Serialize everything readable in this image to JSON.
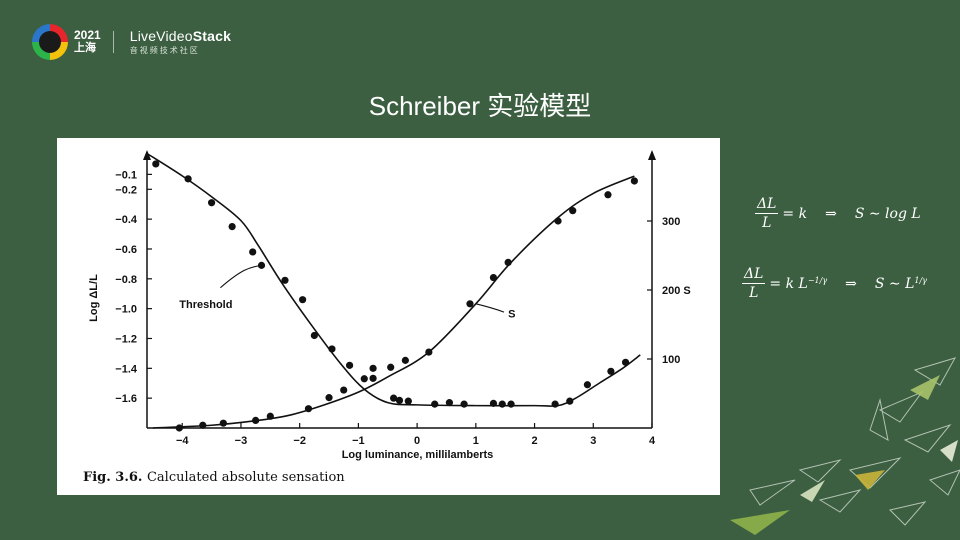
{
  "header": {
    "conf_year": "2021",
    "conf_city": "上海",
    "brand_pre": "LiveVideo",
    "brand_post": "Stack",
    "brand_sub": "音视频技术社区"
  },
  "slide_title": "Schreiber 实验模型",
  "formulas": [
    {
      "num": "ΔL",
      "den": "L",
      "rhs": "= k",
      "implies": "⇒",
      "result": "S ∼ log L"
    },
    {
      "num": "ΔL",
      "den": "L",
      "rhs": "= k L",
      "rhs_sup": "−1/γ",
      "implies": "⇒",
      "result": "S ∼ L",
      "result_sup": "1/γ"
    }
  ],
  "colors": {
    "background": "#3b5f40",
    "figure_bg": "#ffffff",
    "ink": "#111111"
  },
  "chart_data": {
    "type": "line",
    "xlabel": "Log luminance, millilamberts",
    "ylabel_left": "Log ΔL/L",
    "ylabel_right": "S",
    "caption_bold": "Fig. 3.6.",
    "caption_text": "Calculated absolute sensation",
    "x_ticks": [
      -4,
      -3,
      -2,
      -1,
      0,
      1,
      2,
      3,
      4
    ],
    "xlim": [
      -4.6,
      4
    ],
    "y_left_ticks": [
      -0.1,
      -0.2,
      -0.4,
      -0.6,
      -0.8,
      -1.0,
      -1.2,
      -1.4,
      -1.6
    ],
    "ylim_left": [
      -1.8,
      0.05
    ],
    "y_right_ticks": [
      {
        "value": 300,
        "label": "300"
      },
      {
        "value": 200,
        "label": "200 S"
      },
      {
        "value": 100,
        "label": "100"
      }
    ],
    "ylim_right": [
      0,
      400
    ],
    "series": [
      {
        "name": "Threshold",
        "axis": "left",
        "curve": [
          [
            -4.6,
            0.04
          ],
          [
            -4.0,
            -0.11
          ],
          [
            -3.5,
            -0.25
          ],
          [
            -3.0,
            -0.41
          ],
          [
            -2.7,
            -0.58
          ],
          [
            -2.3,
            -0.83
          ],
          [
            -1.8,
            -1.11
          ],
          [
            -1.3,
            -1.37
          ],
          [
            -0.9,
            -1.54
          ],
          [
            -0.5,
            -1.63
          ],
          [
            0,
            -1.645
          ],
          [
            1,
            -1.65
          ],
          [
            2,
            -1.65
          ],
          [
            2.4,
            -1.65
          ],
          [
            2.7,
            -1.6
          ],
          [
            3.1,
            -1.5
          ],
          [
            3.5,
            -1.4
          ],
          [
            3.8,
            -1.31
          ]
        ],
        "points": [
          [
            -4.45,
            -0.03
          ],
          [
            -3.9,
            -0.13
          ],
          [
            -3.5,
            -0.29
          ],
          [
            -3.15,
            -0.45
          ],
          [
            -2.8,
            -0.62
          ],
          [
            -2.65,
            -0.71
          ],
          [
            -2.25,
            -0.81
          ],
          [
            -1.95,
            -0.94
          ],
          [
            -1.75,
            -1.18
          ],
          [
            -1.45,
            -1.27
          ],
          [
            -1.15,
            -1.38
          ],
          [
            -0.9,
            -1.47
          ],
          [
            -0.75,
            -1.4
          ],
          [
            -0.4,
            -1.6
          ],
          [
            -0.3,
            -1.615
          ],
          [
            -0.15,
            -1.62
          ],
          [
            0.3,
            -1.64
          ],
          [
            0.55,
            -1.63
          ],
          [
            0.8,
            -1.64
          ],
          [
            1.3,
            -1.635
          ],
          [
            1.45,
            -1.64
          ],
          [
            1.6,
            -1.64
          ],
          [
            2.35,
            -1.64
          ],
          [
            2.6,
            -1.62
          ],
          [
            2.9,
            -1.51
          ],
          [
            3.3,
            -1.42
          ],
          [
            3.55,
            -1.36
          ]
        ]
      },
      {
        "name": "S",
        "axis": "right",
        "curve": [
          [
            -4.5,
            0
          ],
          [
            -3.5,
            4
          ],
          [
            -2.8,
            10
          ],
          [
            -2.2,
            18
          ],
          [
            -1.6,
            33
          ],
          [
            -1.0,
            52
          ],
          [
            -0.5,
            74
          ],
          [
            0.2,
            110
          ],
          [
            1.0,
            180
          ],
          [
            1.6,
            240
          ],
          [
            2.4,
            305
          ],
          [
            3.0,
            340
          ],
          [
            3.7,
            365
          ]
        ],
        "points": [
          [
            -4.05,
            0
          ],
          [
            -3.65,
            4
          ],
          [
            -3.3,
            7
          ],
          [
            -2.75,
            11
          ],
          [
            -2.5,
            17
          ],
          [
            -1.85,
            28
          ],
          [
            -1.5,
            44
          ],
          [
            -1.25,
            55
          ],
          [
            -0.75,
            72
          ],
          [
            -0.45,
            88
          ],
          [
            -0.2,
            98
          ],
          [
            0.2,
            110
          ],
          [
            0.9,
            180
          ],
          [
            1.3,
            218
          ],
          [
            1.55,
            240
          ],
          [
            2.4,
            300
          ],
          [
            2.65,
            315
          ],
          [
            3.25,
            338
          ],
          [
            3.7,
            358
          ]
        ]
      }
    ],
    "annotations": [
      {
        "text": "Threshold",
        "series": "Threshold"
      },
      {
        "text": "S",
        "series": "S"
      }
    ]
  }
}
